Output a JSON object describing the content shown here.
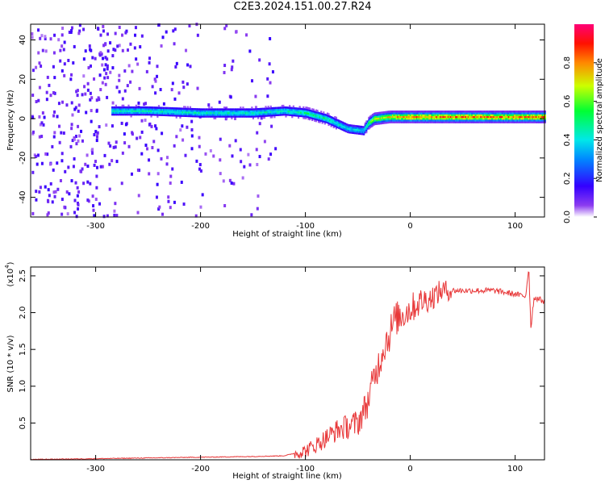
{
  "title": "C2E3.2024.151.00.27.R24",
  "chart_data": [
    {
      "type": "heatmap",
      "title": "C2E3.2024.151.00.27.R24",
      "xlabel": "Height of straight line (km)",
      "ylabel": "Frequency (Hz)",
      "xlim": [
        -362,
        128
      ],
      "ylim": [
        -50,
        48
      ],
      "xticks": [
        -300,
        -200,
        -100,
        0,
        100
      ],
      "yticks": [
        -40,
        -20,
        0,
        20,
        40
      ],
      "colorbar": {
        "label": "Normalized spectral amplitude",
        "range": [
          0,
          1
        ],
        "ticks": [
          0.0,
          0.2,
          0.4,
          0.6,
          0.8
        ],
        "colormap": [
          "#ffffff",
          "#7700ee",
          "#0000ff",
          "#00ffff",
          "#00ff00",
          "#ffff00",
          "#ff0000",
          "#ff0077"
        ]
      },
      "ridge": {
        "x": [
          -285,
          -250,
          -200,
          -150,
          -120,
          -100,
          -80,
          -60,
          -45,
          -40,
          -35,
          -20,
          0,
          50,
          100,
          128
        ],
        "y": [
          4,
          4,
          3,
          3,
          4,
          3,
          0,
          -5,
          -6,
          -2,
          0,
          1,
          1,
          1,
          1,
          1
        ],
        "amplitude": [
          0.45,
          0.45,
          0.45,
          0.45,
          0.45,
          0.5,
          0.5,
          0.4,
          0.4,
          0.6,
          0.7,
          0.75,
          0.85,
          0.85,
          0.85,
          0.85
        ]
      }
    },
    {
      "type": "line",
      "xlabel": "Height of straight line (km)",
      "ylabel": "SNR (10 * v/v)",
      "yscale_label": "(x10",
      "yscale_exponent": "4",
      "xlim": [
        -362,
        128
      ],
      "ylim": [
        0,
        2.62
      ],
      "xticks": [
        -300,
        -200,
        -100,
        0,
        100
      ],
      "yticks": [
        0.5,
        1.0,
        1.5,
        2.0,
        2.5
      ],
      "color": "#e8393a",
      "series": [
        {
          "x": [
            -362,
            -300,
            -250,
            -200,
            -150,
            -120,
            -100,
            -90,
            -80,
            -70,
            -60,
            -50,
            -40,
            -35,
            -30,
            -25,
            -20,
            -15,
            -10,
            -5,
            0,
            10,
            20,
            30,
            40,
            60,
            80,
            100,
            110,
            113,
            115,
            118,
            120,
            128
          ],
          "y": [
            0.0,
            0.01,
            0.02,
            0.03,
            0.04,
            0.05,
            0.12,
            0.2,
            0.3,
            0.4,
            0.45,
            0.5,
            0.8,
            1.1,
            1.3,
            1.55,
            1.7,
            1.9,
            1.95,
            2.0,
            2.05,
            2.15,
            2.2,
            2.3,
            2.3,
            2.3,
            2.3,
            2.25,
            2.22,
            2.62,
            1.8,
            2.2,
            2.2,
            2.15
          ]
        }
      ]
    }
  ]
}
